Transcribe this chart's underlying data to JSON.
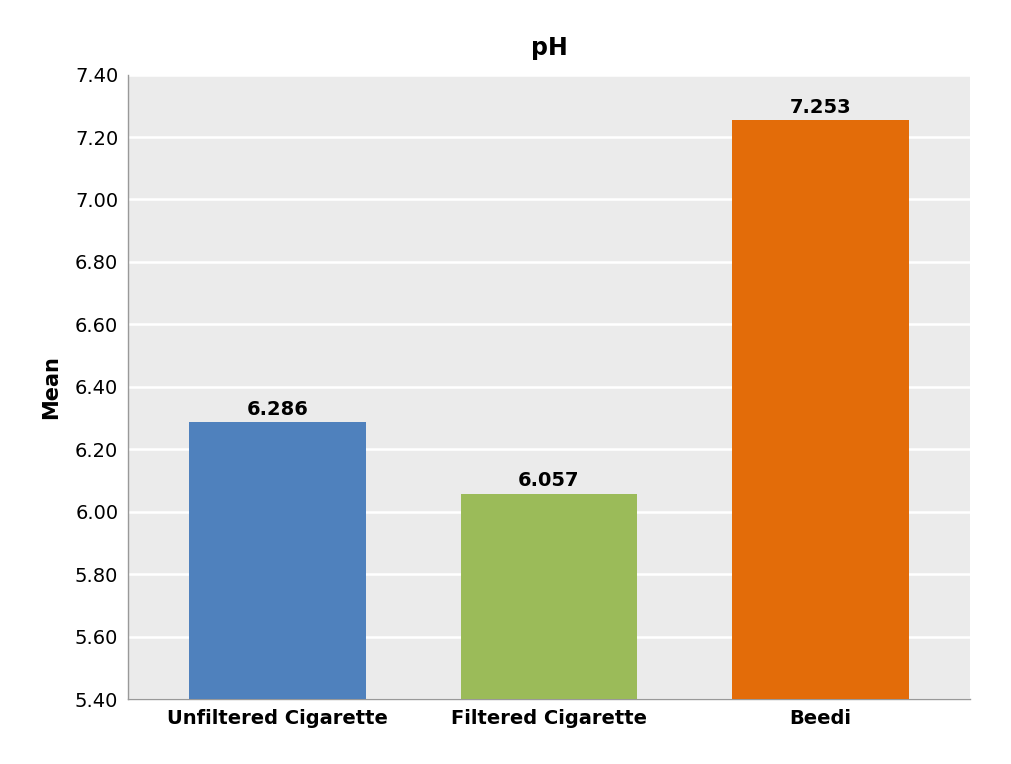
{
  "categories": [
    "Unfiltered Cigarette",
    "Filtered Cigarette",
    "Beedi"
  ],
  "values": [
    6.286,
    6.057,
    7.253
  ],
  "bar_colors": [
    "#4F81BD",
    "#9BBB59",
    "#E36C09"
  ],
  "title": "pH",
  "ylabel": "Mean",
  "ylim": [
    5.4,
    7.4
  ],
  "yticks": [
    5.4,
    5.6,
    5.8,
    6.0,
    6.2,
    6.4,
    6.6,
    6.8,
    7.0,
    7.2,
    7.4
  ],
  "title_fontsize": 17,
  "label_fontsize": 15,
  "tick_fontsize": 14,
  "annotation_fontsize": 14,
  "bar_width": 0.65,
  "background_color": "#EBEBEB",
  "grid_color": "#FFFFFF",
  "border_color": "#999999",
  "figure_bg": "#FFFFFF"
}
